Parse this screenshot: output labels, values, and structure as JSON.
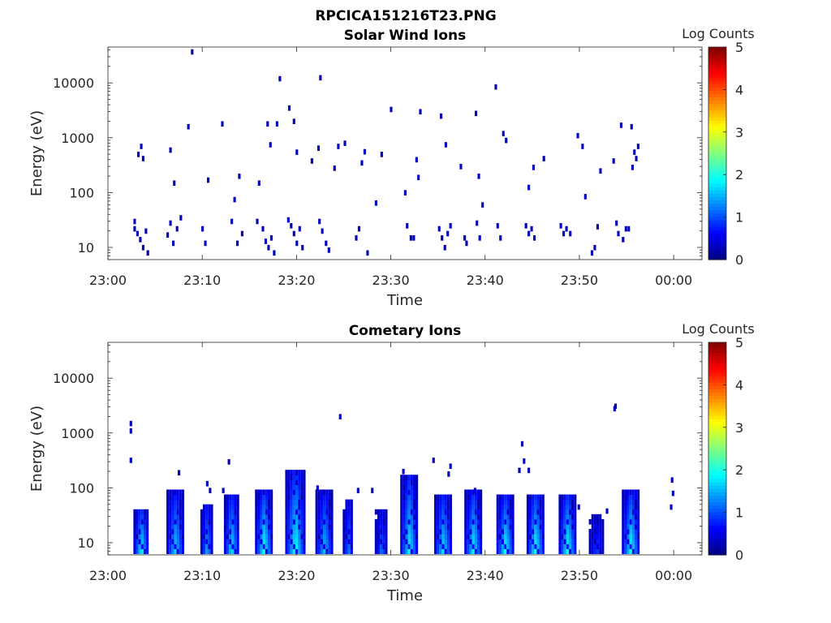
{
  "figure_title": "RPCICA151216T23.PNG",
  "colors": {
    "axis": "#262626",
    "colormap": "jet",
    "colormap_stops": [
      "#00008f",
      "#0000ff",
      "#00ffff",
      "#ffff00",
      "#ff0000",
      "#800000"
    ]
  },
  "chart_data": [
    {
      "type": "heatmap",
      "title": "Solar Wind Ions",
      "xlabel": "Time",
      "ylabel": "Energy (eV)",
      "yscale": "log",
      "xlim": [
        "23:00",
        "00:03"
      ],
      "ylim": [
        6,
        45000
      ],
      "x_ticks": [
        "23:00",
        "23:10",
        "23:20",
        "23:30",
        "23:40",
        "23:50",
        "00:00"
      ],
      "y_ticks": [
        "10",
        "100",
        "1000",
        "10000"
      ],
      "colorbar": {
        "label": "Log Counts",
        "range": [
          0,
          5
        ],
        "ticks": [
          "0",
          "1",
          "2",
          "3",
          "4",
          "5"
        ]
      },
      "grid": false,
      "cells": [
        [
          "23:02.7",
          30,
          0.3
        ],
        [
          "23:02.7",
          22,
          0.3
        ],
        [
          "23:03.0",
          18,
          0.3
        ],
        [
          "23:03.3",
          14,
          0.3
        ],
        [
          "23:03.6",
          10,
          0.3
        ],
        [
          "23:03.9",
          20,
          0.3
        ],
        [
          "23:04.1",
          8,
          0.3
        ],
        [
          "23:03.1",
          500,
          0.3
        ],
        [
          "23:03.4",
          700,
          0.3
        ],
        [
          "23:03.6",
          420,
          0.3
        ],
        [
          "23:06.2",
          17,
          0.3
        ],
        [
          "23:06.5",
          28,
          0.3
        ],
        [
          "23:06.8",
          12,
          0.3
        ],
        [
          "23:07.2",
          22,
          0.3
        ],
        [
          "23:07.6",
          35,
          0.3
        ],
        [
          "23:06.5",
          600,
          0.3
        ],
        [
          "23:06.9",
          150,
          0.3
        ],
        [
          "23:08.4",
          1600,
          0.3
        ],
        [
          "23:08.8",
          37000,
          0.3
        ],
        [
          "23:09.9",
          22,
          0.3
        ],
        [
          "23:10.2",
          12,
          0.3
        ],
        [
          "23:10.5",
          170,
          0.3
        ],
        [
          "23:12.0",
          1800,
          0.3
        ],
        [
          "23:13.0",
          30,
          0.3
        ],
        [
          "23:13.6",
          12,
          0.3
        ],
        [
          "23:14.1",
          18,
          0.3
        ],
        [
          "23:13.8",
          200,
          0.3
        ],
        [
          "23:13.3",
          75,
          0.3
        ],
        [
          "23:16.3",
          22,
          0.3
        ],
        [
          "23:16.6",
          13,
          0.3
        ],
        [
          "23:16.9",
          10,
          0.3
        ],
        [
          "23:17.2",
          15,
          0.3
        ],
        [
          "23:17.5",
          8,
          0.3
        ],
        [
          "23:15.7",
          30,
          0.3
        ],
        [
          "23:15.9",
          150,
          0.3
        ],
        [
          "23:16.8",
          1800,
          0.3
        ],
        [
          "23:17.1",
          750,
          0.3
        ],
        [
          "23:17.8",
          1800,
          0.3
        ],
        [
          "23:18.1",
          12000,
          0.3
        ],
        [
          "23:19.1",
          3500,
          0.3
        ],
        [
          "23:19.0",
          32,
          0.3
        ],
        [
          "23:19.3",
          25,
          0.3
        ],
        [
          "23:19.6",
          18,
          0.3
        ],
        [
          "23:19.9",
          12,
          0.3
        ],
        [
          "23:20.2",
          22,
          0.3
        ],
        [
          "23:20.5",
          10,
          0.3
        ],
        [
          "23:19.6",
          2000,
          0.3
        ],
        [
          "23:19.9",
          550,
          0.3
        ],
        [
          "23:21.5",
          380,
          0.3
        ],
        [
          "23:22.2",
          650,
          0.3
        ],
        [
          "23:22.4",
          12500,
          0.3
        ],
        [
          "23:22.3",
          30,
          0.3
        ],
        [
          "23:22.6",
          20,
          0.3
        ],
        [
          "23:23.0",
          12,
          0.3
        ],
        [
          "23:23.3",
          9,
          0.3
        ],
        [
          "23:23.9",
          280,
          0.3
        ],
        [
          "23:24.3",
          700,
          0.3
        ],
        [
          "23:25.0",
          800,
          0.3
        ],
        [
          "23:26.2",
          15,
          0.3
        ],
        [
          "23:26.5",
          22,
          0.3
        ],
        [
          "23:26.8",
          350,
          0.3
        ],
        [
          "23:27.1",
          560,
          0.3
        ],
        [
          "23:27.4",
          8,
          0.3
        ],
        [
          "23:28.9",
          500,
          0.3
        ],
        [
          "23:28.3",
          65,
          0.3
        ],
        [
          "23:29.9",
          3300,
          0.3
        ],
        [
          "23:31.4",
          100,
          0.3
        ],
        [
          "23:31.6",
          25,
          0.3
        ],
        [
          "23:32.0",
          15,
          0.3
        ],
        [
          "23:32.3",
          15,
          0.3
        ],
        [
          "23:32.6",
          400,
          0.3
        ],
        [
          "23:32.8",
          190,
          0.3
        ],
        [
          "23:33.0",
          3000,
          0.3
        ],
        [
          "23:35.0",
          22,
          0.3
        ],
        [
          "23:35.3",
          15,
          0.3
        ],
        [
          "23:35.6",
          10,
          0.3
        ],
        [
          "23:35.9",
          18,
          0.3
        ],
        [
          "23:36.2",
          25,
          0.3
        ],
        [
          "23:35.2",
          2500,
          0.3
        ],
        [
          "23:35.7",
          750,
          0.3
        ],
        [
          "23:37.3",
          300,
          0.3
        ],
        [
          "23:37.7",
          15,
          0.3
        ],
        [
          "23:37.9",
          12,
          0.3
        ],
        [
          "23:39.0",
          28,
          0.3
        ],
        [
          "23:39.3",
          15,
          0.3
        ],
        [
          "23:39.6",
          60,
          0.3
        ],
        [
          "23:38.9",
          2800,
          0.3
        ],
        [
          "23:39.2",
          200,
          0.3
        ],
        [
          "23:41.0",
          8500,
          0.3
        ],
        [
          "23:41.2",
          25,
          0.3
        ],
        [
          "23:41.5",
          15,
          0.3
        ],
        [
          "23:41.8",
          1200,
          0.3
        ],
        [
          "23:42.1",
          900,
          0.3
        ],
        [
          "23:44.2",
          25,
          0.3
        ],
        [
          "23:44.5",
          18,
          0.3
        ],
        [
          "23:44.8",
          22,
          0.3
        ],
        [
          "23:45.1",
          15,
          0.3
        ],
        [
          "23:45.0",
          290,
          0.3
        ],
        [
          "23:44.5",
          125,
          0.3
        ],
        [
          "23:46.1",
          420,
          0.3
        ],
        [
          "23:47.9",
          25,
          0.3
        ],
        [
          "23:48.2",
          18,
          0.3
        ],
        [
          "23:48.5",
          22,
          0.3
        ],
        [
          "23:48.9",
          18,
          0.3
        ],
        [
          "23:49.7",
          1100,
          0.3
        ],
        [
          "23:50.2",
          700,
          0.3
        ],
        [
          "23:50.5",
          85,
          0.3
        ],
        [
          "23:51.2",
          8,
          0.3
        ],
        [
          "23:51.5",
          10,
          0.3
        ],
        [
          "23:51.8",
          24,
          0.3
        ],
        [
          "23:52.1",
          250,
          0.3
        ],
        [
          "23:53.5",
          380,
          0.3
        ],
        [
          "23:54.3",
          1700,
          0.3
        ],
        [
          "23:53.8",
          28,
          0.3
        ],
        [
          "23:54.0",
          18,
          0.3
        ],
        [
          "23:54.5",
          14,
          0.3
        ],
        [
          "23:54.8",
          22,
          0.3
        ],
        [
          "23:55.1",
          22,
          0.3
        ],
        [
          "23:55.4",
          1600,
          0.3
        ],
        [
          "23:55.5",
          290,
          0.3
        ],
        [
          "23:55.7",
          550,
          0.3
        ],
        [
          "23:55.9",
          420,
          0.3
        ],
        [
          "23:56.1",
          700,
          0.3
        ]
      ]
    },
    {
      "type": "heatmap",
      "title": "Cometary Ions",
      "xlabel": "Time",
      "ylabel": "Energy (eV)",
      "yscale": "log",
      "xlim": [
        "23:00",
        "00:03"
      ],
      "ylim": [
        6,
        45000
      ],
      "x_ticks": [
        "23:00",
        "23:10",
        "23:20",
        "23:30",
        "23:40",
        "23:50",
        "00:00"
      ],
      "y_ticks": [
        "10",
        "100",
        "1000",
        "10000"
      ],
      "colorbar": {
        "label": "Log Counts",
        "range": [
          0,
          5
        ],
        "ticks": [
          "0",
          "1",
          "2",
          "3",
          "4",
          "5"
        ]
      },
      "grid": false,
      "bursts": [
        {
          "t": "23:02.7",
          "ymax": 45,
          "tmin": 7,
          "peak": 1.9,
          "width": 1.6
        },
        {
          "t": "23:06.2",
          "ymax": 90,
          "tmin": 7,
          "peak": 1.7,
          "width": 1.8
        },
        {
          "t": "23:09.8",
          "ymax": 50,
          "tmin": 7,
          "peak": 1.5,
          "width": 1.4
        },
        {
          "t": "23:12.3",
          "ymax": 80,
          "tmin": 7,
          "peak": 1.8,
          "width": 1.6
        },
        {
          "t": "23:15.6",
          "ymax": 90,
          "tmin": 7,
          "peak": 2.0,
          "width": 2.0
        },
        {
          "t": "23:18.8",
          "ymax": 230,
          "tmin": 7,
          "peak": 2.0,
          "width": 2.2
        },
        {
          "t": "23:22.0",
          "ymax": 90,
          "tmin": 7,
          "peak": 1.6,
          "width": 1.8
        },
        {
          "t": "23:24.9",
          "ymax": 60,
          "tmin": 7,
          "peak": 1.3,
          "width": 1.2
        },
        {
          "t": "23:28.3",
          "ymax": 40,
          "tmin": 7,
          "peak": 1.2,
          "width": 1.4
        },
        {
          "t": "23:31.0",
          "ymax": 170,
          "tmin": 7,
          "peak": 1.9,
          "width": 1.8
        },
        {
          "t": "23:34.6",
          "ymax": 80,
          "tmin": 7,
          "peak": 1.8,
          "width": 1.8
        },
        {
          "t": "23:37.8",
          "ymax": 90,
          "tmin": 7,
          "peak": 1.9,
          "width": 1.8
        },
        {
          "t": "23:41.2",
          "ymax": 70,
          "tmin": 7,
          "peak": 2.0,
          "width": 1.8
        },
        {
          "t": "23:44.4",
          "ymax": 80,
          "tmin": 7,
          "peak": 2.0,
          "width": 2.0
        },
        {
          "t": "23:47.8",
          "ymax": 80,
          "tmin": 7,
          "peak": 2.0,
          "width": 1.8
        },
        {
          "t": "23:51.0",
          "ymax": 30,
          "tmin": 7,
          "peak": 1.0,
          "width": 1.6
        },
        {
          "t": "23:54.5",
          "ymax": 85,
          "tmin": 7,
          "peak": 2.0,
          "width": 1.8
        }
      ],
      "cells": [
        [
          "23:02.3",
          1500,
          0.3
        ],
        [
          "23:02.3",
          1100,
          0.3
        ],
        [
          "23:02.3",
          320,
          0.3
        ],
        [
          "23:07.4",
          190,
          0.3
        ],
        [
          "23:10.4",
          120,
          0.3
        ],
        [
          "23:10.7",
          90,
          0.3
        ],
        [
          "23:12.7",
          300,
          0.3
        ],
        [
          "23:12.1",
          90,
          0.3
        ],
        [
          "23:18.9",
          120,
          0.3
        ],
        [
          "23:19.9",
          110,
          0.3
        ],
        [
          "23:22.1",
          100,
          0.3
        ],
        [
          "23:24.5",
          2000,
          0.3
        ],
        [
          "23:26.4",
          90,
          0.3
        ],
        [
          "23:27.9",
          90,
          0.3
        ],
        [
          "23:31.2",
          200,
          0.3
        ],
        [
          "23:31.4",
          90,
          0.3
        ],
        [
          "23:34.4",
          320,
          0.3
        ],
        [
          "23:36.2",
          250,
          0.3
        ],
        [
          "23:36.0",
          180,
          0.3
        ],
        [
          "23:38.8",
          90,
          0.3
        ],
        [
          "23:39.4",
          60,
          0.3
        ],
        [
          "23:43.5",
          210,
          0.3
        ],
        [
          "23:43.8",
          640,
          0.3
        ],
        [
          "23:44.0",
          310,
          0.3
        ],
        [
          "23:44.5",
          210,
          0.3
        ],
        [
          "23:45.2",
          40,
          0.3
        ],
        [
          "23:49.8",
          45,
          0.3
        ],
        [
          "23:53.7",
          3100,
          0.3
        ],
        [
          "23:53.6",
          2800,
          0.3
        ],
        [
          "23:59.7",
          140,
          0.3
        ],
        [
          "23:59.8",
          80,
          0.3
        ],
        [
          "23:59.6",
          45,
          0.3
        ],
        [
          "23:55.8",
          45,
          0.3
        ],
        [
          "23:52.8",
          38,
          0.3
        ]
      ]
    }
  ]
}
